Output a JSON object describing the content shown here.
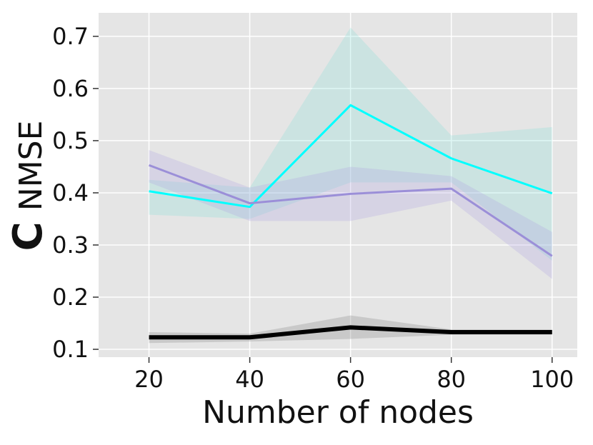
{
  "chart_data": {
    "type": "line",
    "xlabel": "Number of nodes",
    "ylabel_prefix": "C",
    "ylabel": "NMSE",
    "x": [
      20,
      40,
      60,
      80,
      100
    ],
    "x_ticks": [
      "20",
      "40",
      "60",
      "80",
      "100"
    ],
    "xlim": [
      10,
      105
    ],
    "ylim": [
      0.085,
      0.745
    ],
    "y_ticks": [
      "0.1",
      "0.2",
      "0.3",
      "0.4",
      "0.5",
      "0.6",
      "0.7"
    ],
    "grid": true,
    "background": "#e5e5e5",
    "grid_color": "#ffffff",
    "series": [
      {
        "color": "#00ffff",
        "band_color": "#7fded8",
        "band_opacity": 0.25,
        "line_width": 3,
        "values": [
          0.403,
          0.373,
          0.568,
          0.466,
          0.399
        ],
        "lower": [
          0.358,
          0.35,
          0.42,
          0.42,
          0.27
        ],
        "upper": [
          0.425,
          0.41,
          0.717,
          0.51,
          0.526
        ]
      },
      {
        "color": "#9b8fd8",
        "band_color": "#b4a8e0",
        "band_opacity": 0.3,
        "line_width": 3,
        "values": [
          0.453,
          0.38,
          0.398,
          0.408,
          0.279
        ],
        "lower": [
          0.42,
          0.346,
          0.346,
          0.385,
          0.235
        ],
        "upper": [
          0.482,
          0.41,
          0.45,
          0.432,
          0.325
        ]
      },
      {
        "color": "#000000",
        "band_color": "#888888",
        "band_opacity": 0.3,
        "line_width": 6,
        "values": [
          0.123,
          0.123,
          0.142,
          0.133,
          0.133
        ],
        "lower": [
          0.112,
          0.115,
          0.12,
          0.128,
          0.128
        ],
        "upper": [
          0.133,
          0.13,
          0.165,
          0.138,
          0.138
        ]
      }
    ]
  }
}
